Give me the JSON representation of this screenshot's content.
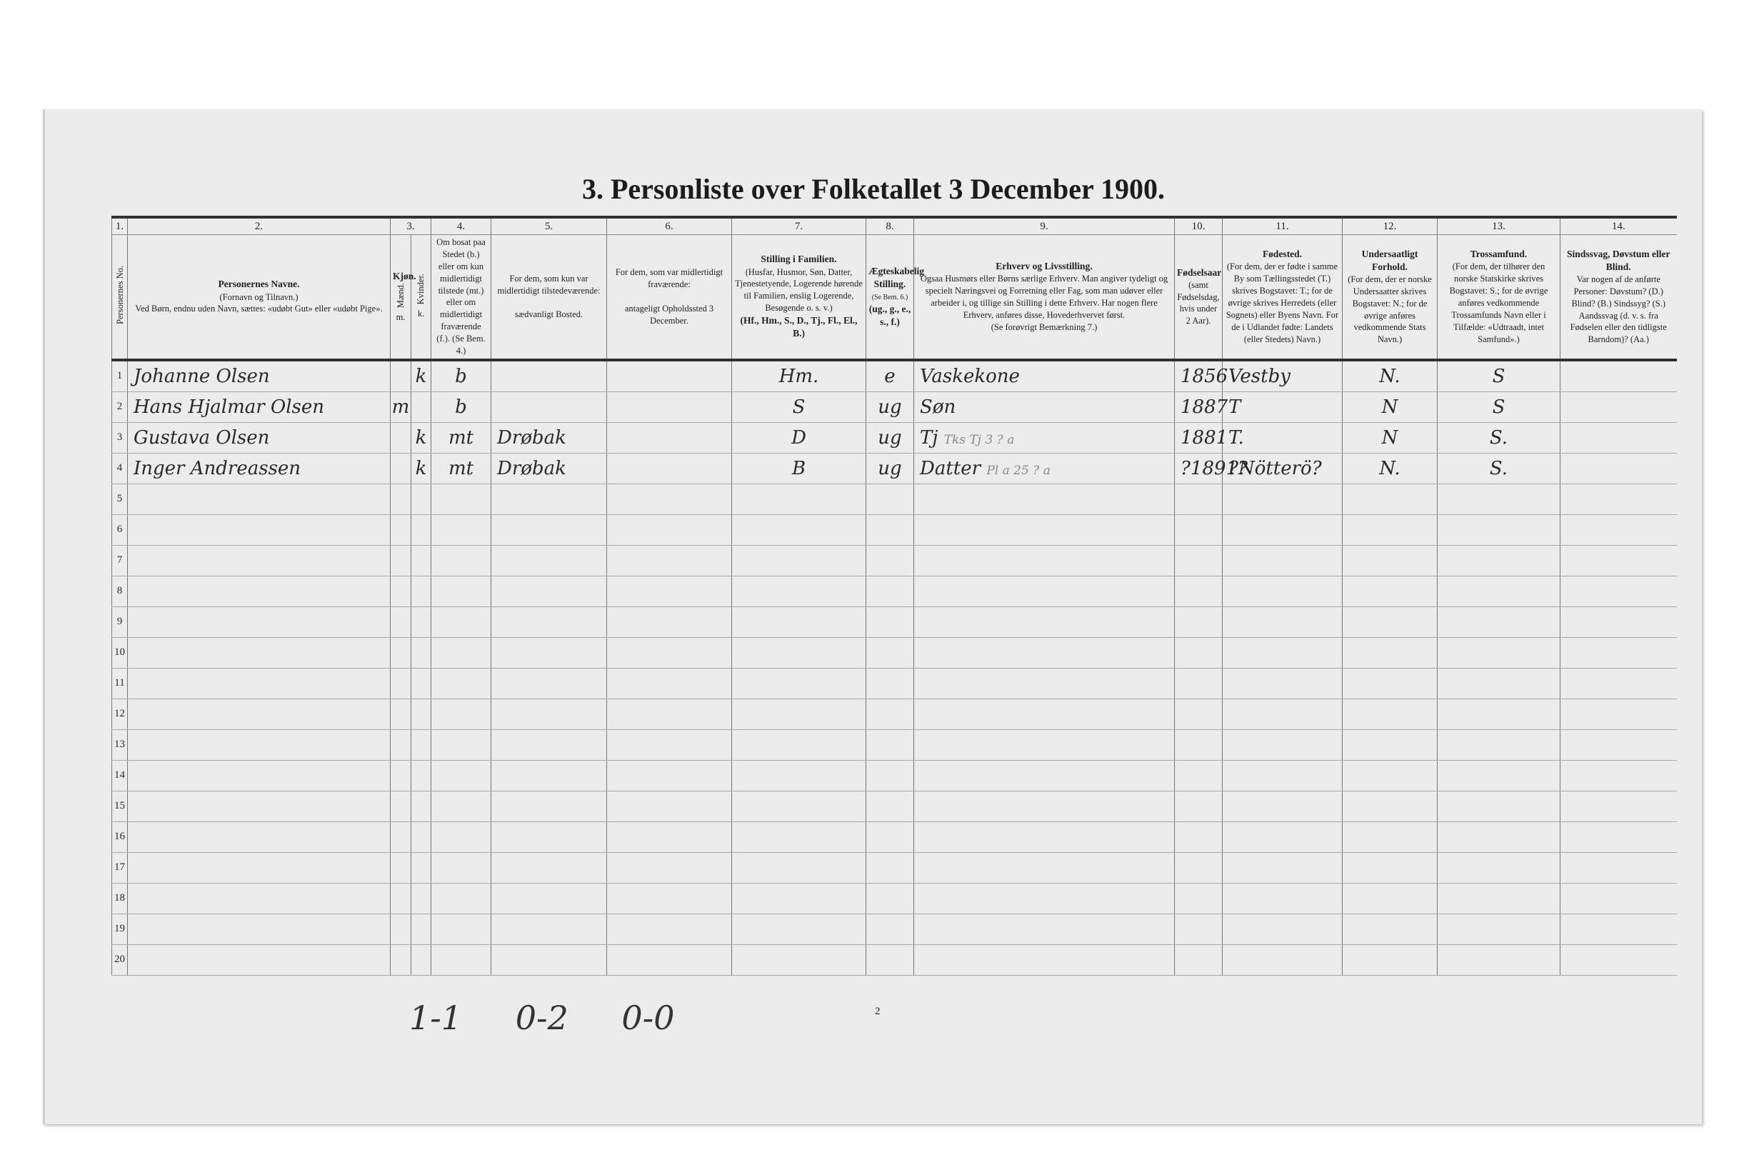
{
  "title": "3. Personliste over Folketallet 3 December 1900.",
  "col_numbers": [
    "1.",
    "2.",
    "3.",
    "4.",
    "5.",
    "6.",
    "7.",
    "8.",
    "9.",
    "10.",
    "11.",
    "12.",
    "13.",
    "14."
  ],
  "headers": {
    "c1": "Personernes No.",
    "c2_title": "Personernes Navne.",
    "c2_sub": "(Fornavn og Tilnavn.)",
    "c2_note": "Ved Børn, endnu uden Navn, sættes: «udøbt Gut» eller «udøbt Pige».",
    "c3_title": "Kjøn.",
    "c3_m": "Mænd.",
    "c3_k": "Kvinder.",
    "c3_m_abbr": "m.",
    "c3_k_abbr": "k.",
    "c4": "Om bosat paa Stedet (b.) eller om kun midlertidigt tilstede (mt.) eller om midlertidigt fraværende (f.). (Se Bem. 4.)",
    "c5_title": "For dem, som kun var midlertidigt tilstedeværende:",
    "c5_sub": "sædvanligt Bosted.",
    "c6_title": "For dem, som var midlertidigt fraværende:",
    "c6_sub": "antageligt Opholdssted 3 December.",
    "c7_title": "Stilling i Familien.",
    "c7_sub": "(Husfar, Husmor, Søn, Datter, Tjenestetyende, Logerende hørende til Familien, enslig Logerende, Besøgende o. s. v.)",
    "c7_codes": "(Hf., Hm., S., D., Tj., Fl., El., B.)",
    "c8_title": "Ægteskabelig Stilling.",
    "c8_sub": "(Se Bem. 6.)",
    "c8_codes": "(ug., g., e., s., f.)",
    "c9_title": "Erhverv og Livsstilling.",
    "c9_sub": "Ogsaa Husmørs eller Børns særlige Erhverv. Man angiver tydeligt og specielt Næringsvei og Forretning eller Fag, som man udøver eller arbeider i, og tillige sin Stilling i dette Erhverv. Har nogen flere Erhverv, anføres disse, Hovederhvervet først.",
    "c9_note": "(Se forøvrigt Bemærkning 7.)",
    "c10_title": "Fødselsaar",
    "c10_sub": "(samt Fødselsdag, hvis under 2 Aar).",
    "c11_title": "Fødested.",
    "c11_sub": "(For dem, der er fødte i samme By som Tællingsstedet (T.) skrives Bogstavet: T.; for de øvrige skrives Herredets (eller Sognets) eller Byens Navn. For de i Udlandet fødte: Landets (eller Stedets) Navn.)",
    "c12_title": "Undersaatligt Forhold.",
    "c12_sub": "(For dem, der er norske Undersaatter skrives Bogstavet: N.; for de øvrige anføres vedkommende Stats Navn.)",
    "c13_title": "Trossamfund.",
    "c13_sub": "(For dem, der tilhører den norske Statskirke skrives Bogstavet: S.; for de øvrige anføres vedkommende Trossamfunds Navn eller i Tilfælde: «Udtraadt, intet Samfund».)",
    "c14_title": "Sindssvag, Døvstum eller Blind.",
    "c14_sub": "Var nogen af de anførte Personer: Døvstum? (D.) Blind? (B.) Sindssyg? (S.) Aandssvag (d. v. s. fra Fødselen eller den tidligste Barndom)? (Aa.)"
  },
  "rows": [
    {
      "no": "1",
      "name": "Johanne Olsen",
      "m": "",
      "k": "k",
      "bosat": "b",
      "bosted": "",
      "opholdssted": "",
      "stilling": "Hm.",
      "egteskab": "e",
      "erhverv": "Vaskekone",
      "note": "",
      "aar": "1856",
      "fodested": "Vestby",
      "undersaat": "N.",
      "tros": "S",
      "sindssvag": ""
    },
    {
      "no": "2",
      "name": "Hans Hjalmar Olsen",
      "m": "m",
      "k": "",
      "bosat": "b",
      "bosted": "",
      "opholdssted": "",
      "stilling": "S",
      "egteskab": "ug",
      "erhverv": "Søn",
      "note": "",
      "aar": "1887",
      "fodested": "T",
      "undersaat": "N",
      "tros": "S",
      "sindssvag": ""
    },
    {
      "no": "3",
      "name": "Gustava Olsen",
      "m": "",
      "k": "k",
      "bosat": "mt",
      "bosted": "Drøbak",
      "opholdssted": "",
      "stilling": "D",
      "egteskab": "ug",
      "erhverv": "Tj",
      "note": "Tks Tj 3 ? a",
      "aar": "1881",
      "fodested": "T.",
      "undersaat": "N",
      "tros": "S.",
      "sindssvag": ""
    },
    {
      "no": "4",
      "name": "Inger Andreassen",
      "m": "",
      "k": "k",
      "bosat": "mt",
      "bosted": "Drøbak",
      "opholdssted": "",
      "stilling": "B",
      "egteskab": "ug",
      "erhverv": "Datter",
      "note": "Pl a 25 ? a",
      "aar": "?1891?",
      "fodested": "?Nötterö?",
      "undersaat": "N.",
      "tros": "S.",
      "sindssvag": ""
    }
  ],
  "empty_row_numbers": [
    "5",
    "6",
    "7",
    "8",
    "9",
    "10",
    "11",
    "12",
    "13",
    "14",
    "15",
    "16",
    "17",
    "18",
    "19",
    "20"
  ],
  "tally": "1-1  0-2  0-0",
  "page_number": "2"
}
